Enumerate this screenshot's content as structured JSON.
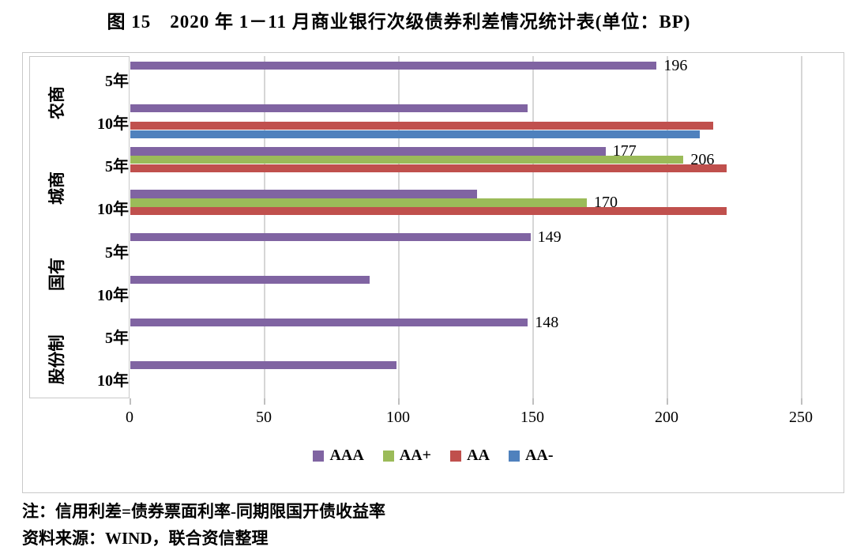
{
  "title": "图 15　2020 年 1－11 月商业银行次级债券利差情况统计表(单位：BP)",
  "notes": [
    "注：信用利差=债券票面利率-同期限国开债收益率",
    "资料来源：WIND，联合资信整理"
  ],
  "chart_data": {
    "type": "bar",
    "orientation": "horizontal",
    "unit": "BP",
    "xlim": [
      0,
      250
    ],
    "x_ticks": [
      "0",
      "50",
      "100",
      "150",
      "200",
      "250"
    ],
    "grid": true,
    "legend_position": "bottom",
    "series_order": [
      "AAA",
      "AA+",
      "AA",
      "AA-"
    ],
    "legend": [
      {
        "name": "AAA",
        "color": "#8064A2"
      },
      {
        "name": "AA+",
        "color": "#9BBB59"
      },
      {
        "name": "AA",
        "color": "#C0504D"
      },
      {
        "name": "AA-",
        "color": "#4F81BD"
      }
    ],
    "groups": [
      {
        "group": "农商",
        "rows": [
          {
            "tenor": "5年",
            "bars": [
              {
                "series": "AAA",
                "value": 196,
                "label": "196"
              }
            ]
          },
          {
            "tenor": "10年",
            "bars": [
              {
                "series": "AAA",
                "value": 148
              },
              {
                "series": "AA",
                "value": 217
              },
              {
                "series": "AA-",
                "value": 212
              }
            ]
          }
        ]
      },
      {
        "group": "城商",
        "rows": [
          {
            "tenor": "5年",
            "bars": [
              {
                "series": "AAA",
                "value": 177,
                "label": "177"
              },
              {
                "series": "AA+",
                "value": 206,
                "label": "206"
              },
              {
                "series": "AA",
                "value": 222
              }
            ]
          },
          {
            "tenor": "10年",
            "bars": [
              {
                "series": "AAA",
                "value": 129
              },
              {
                "series": "AA+",
                "value": 170,
                "label": "170"
              },
              {
                "series": "AA",
                "value": 222
              }
            ]
          }
        ]
      },
      {
        "group": "国有",
        "rows": [
          {
            "tenor": "5年",
            "bars": [
              {
                "series": "AAA",
                "value": 149,
                "label": "149"
              }
            ]
          },
          {
            "tenor": "10年",
            "bars": [
              {
                "series": "AAA",
                "value": 89
              }
            ]
          }
        ]
      },
      {
        "group": "股份制",
        "rows": [
          {
            "tenor": "5年",
            "bars": [
              {
                "series": "AAA",
                "value": 148,
                "label": "148"
              }
            ]
          },
          {
            "tenor": "10年",
            "bars": [
              {
                "series": "AAA",
                "value": 99
              }
            ]
          }
        ]
      }
    ]
  }
}
